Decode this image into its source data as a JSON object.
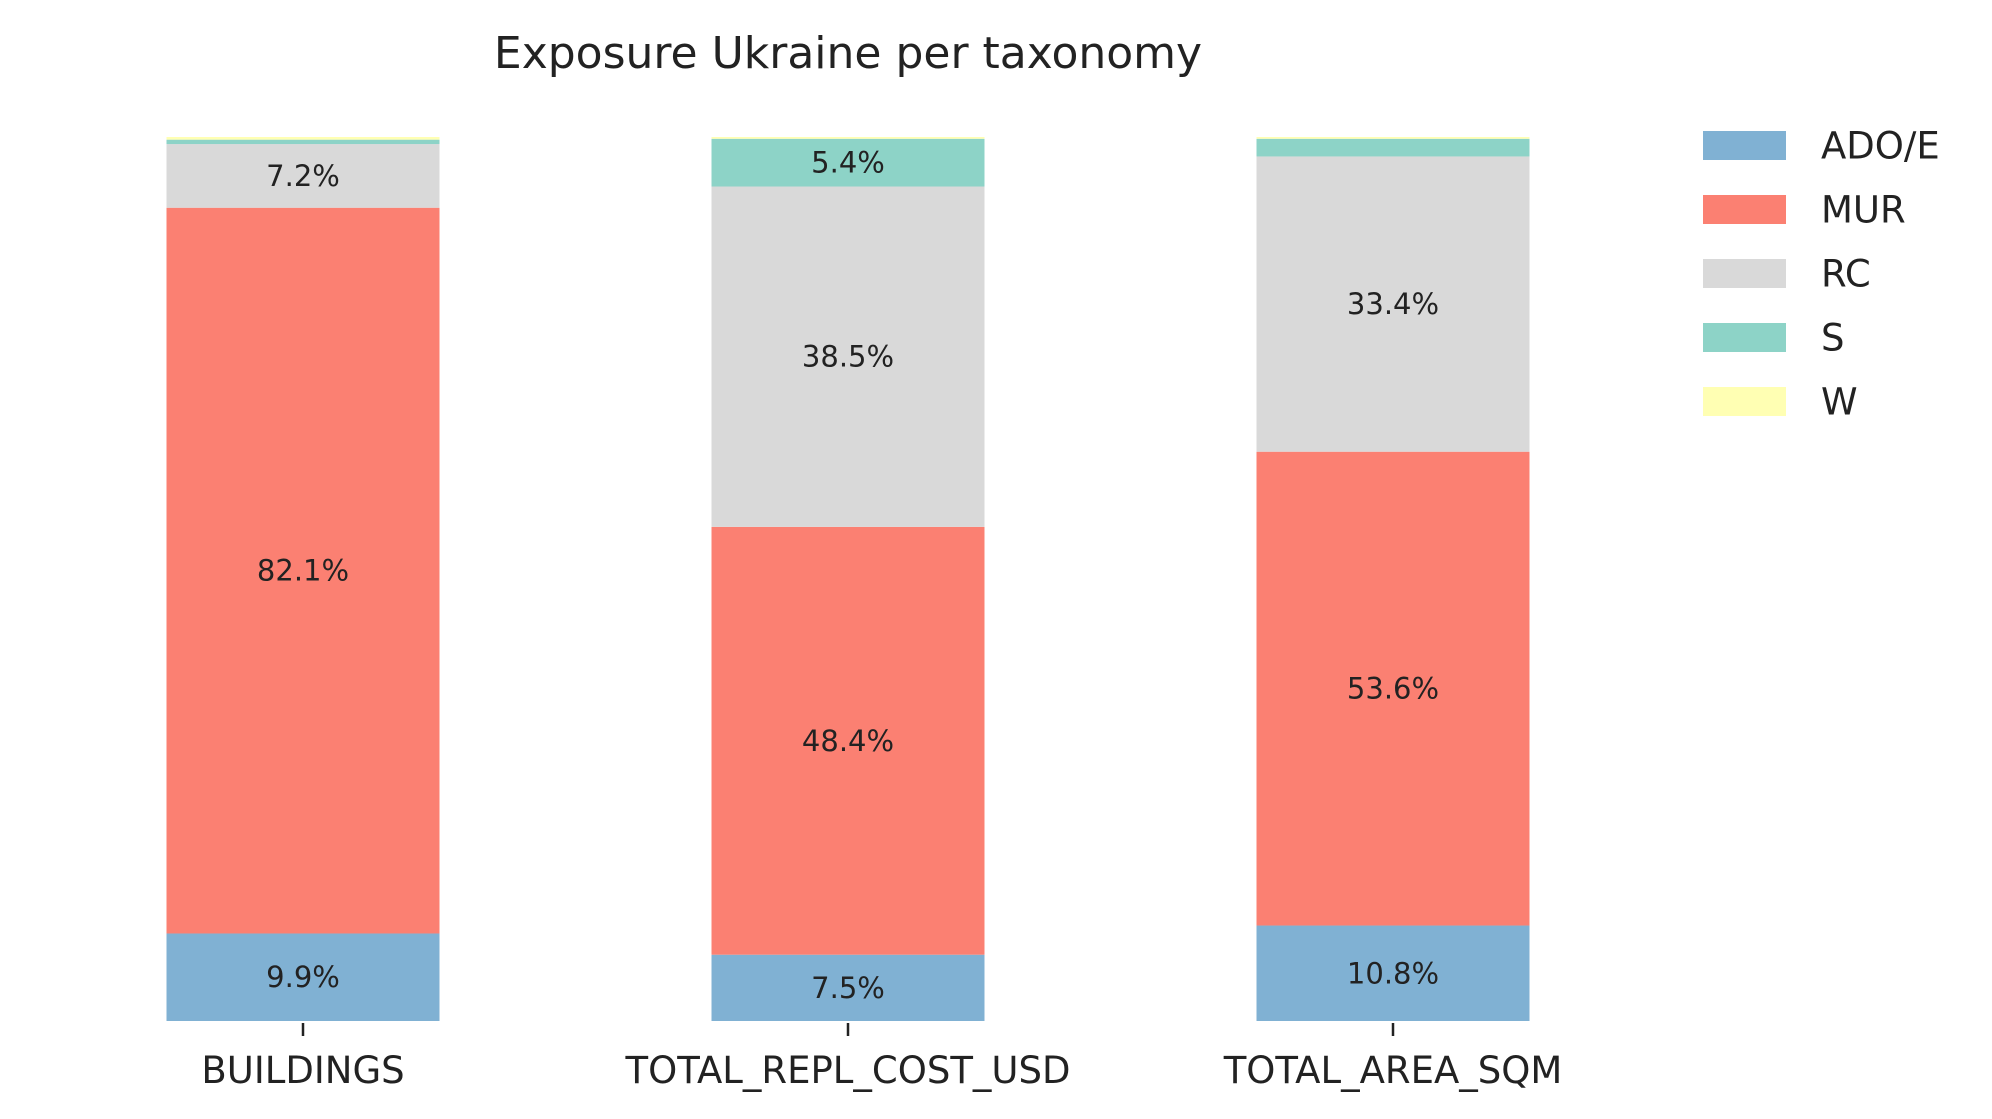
{
  "chart_data": {
    "type": "bar",
    "stacked": true,
    "normalized": true,
    "title": "Exposure Ukraine per taxonomy",
    "xlabel": "",
    "ylabel": "",
    "ylim": [
      0,
      100
    ],
    "grid": false,
    "legend_position": "right",
    "categories": [
      "BUILDINGS",
      "TOTAL_REPL_COST_USD",
      "TOTAL_AREA_SQM"
    ],
    "series": [
      {
        "name": "ADO/E",
        "color": "#80b1d3",
        "values": [
          9.9,
          7.5,
          10.8
        ],
        "labels": [
          "9.9%",
          "7.5%",
          "10.8%"
        ]
      },
      {
        "name": "MUR",
        "color": "#fb8072",
        "values": [
          82.1,
          48.4,
          53.6
        ],
        "labels": [
          "82.1%",
          "48.4%",
          "53.6%"
        ]
      },
      {
        "name": "RC",
        "color": "#d9d9d9",
        "values": [
          7.2,
          38.5,
          33.4
        ],
        "labels": [
          "7.2%",
          "38.5%",
          "33.4%"
        ]
      },
      {
        "name": "S",
        "color": "#8dd3c7",
        "values": [
          0.5,
          5.4,
          2.0
        ],
        "labels": [
          "",
          "5.4%",
          ""
        ]
      },
      {
        "name": "W",
        "color": "#ffffb3",
        "values": [
          0.3,
          0.2,
          0.2
        ],
        "labels": [
          "",
          "",
          ""
        ]
      }
    ]
  }
}
